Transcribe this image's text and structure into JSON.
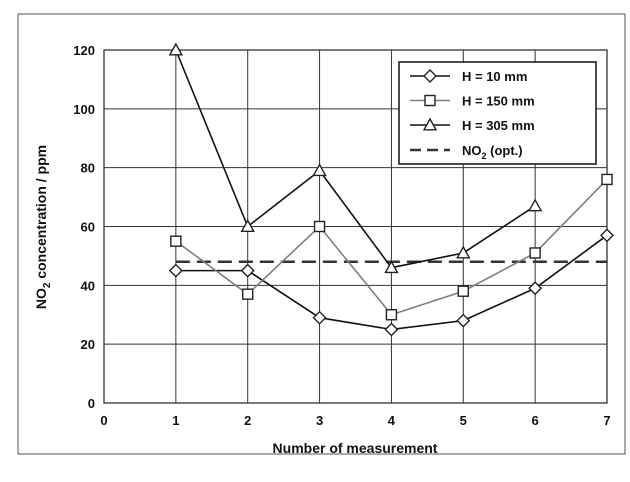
{
  "chart_data": {
    "type": "line",
    "xlabel": "Number of measurement",
    "ylabel_main": "NO",
    "ylabel_sub": "2",
    "ylabel_rest": " concentration / ppm",
    "xlim": [
      0,
      7
    ],
    "ylim": [
      0,
      120
    ],
    "x_ticks": [
      "0",
      "1",
      "2",
      "3",
      "4",
      "5",
      "6",
      "7"
    ],
    "y_ticks": [
      "0",
      "20",
      "40",
      "60",
      "80",
      "100",
      "120"
    ],
    "x_step": 1,
    "y_step": 20,
    "grid": true,
    "legend_position": "top-right",
    "series": [
      {
        "name": "H = 10 mm",
        "marker": "diamond",
        "color": "#111111",
        "x": [
          1,
          2,
          3,
          4,
          5,
          6,
          7
        ],
        "y": [
          45,
          45,
          29,
          25,
          28,
          39,
          57
        ]
      },
      {
        "name": "H = 150 mm",
        "marker": "square",
        "color": "#7f7f7f",
        "x": [
          1,
          2,
          3,
          4,
          5,
          6,
          7
        ],
        "y": [
          55,
          37,
          60,
          30,
          38,
          51,
          76
        ]
      },
      {
        "name": "H = 305 mm",
        "marker": "triangle",
        "color": "#111111",
        "x": [
          1,
          2,
          3,
          4,
          5,
          6
        ],
        "y": [
          120,
          60,
          79,
          46,
          51,
          67
        ]
      }
    ],
    "reference_line": {
      "name_main": "NO",
      "name_sub": "2",
      "name_rest": " (opt.)",
      "style": "dashed",
      "color": "#333333",
      "y": 48,
      "x_start": 1,
      "x_end": 7
    }
  }
}
